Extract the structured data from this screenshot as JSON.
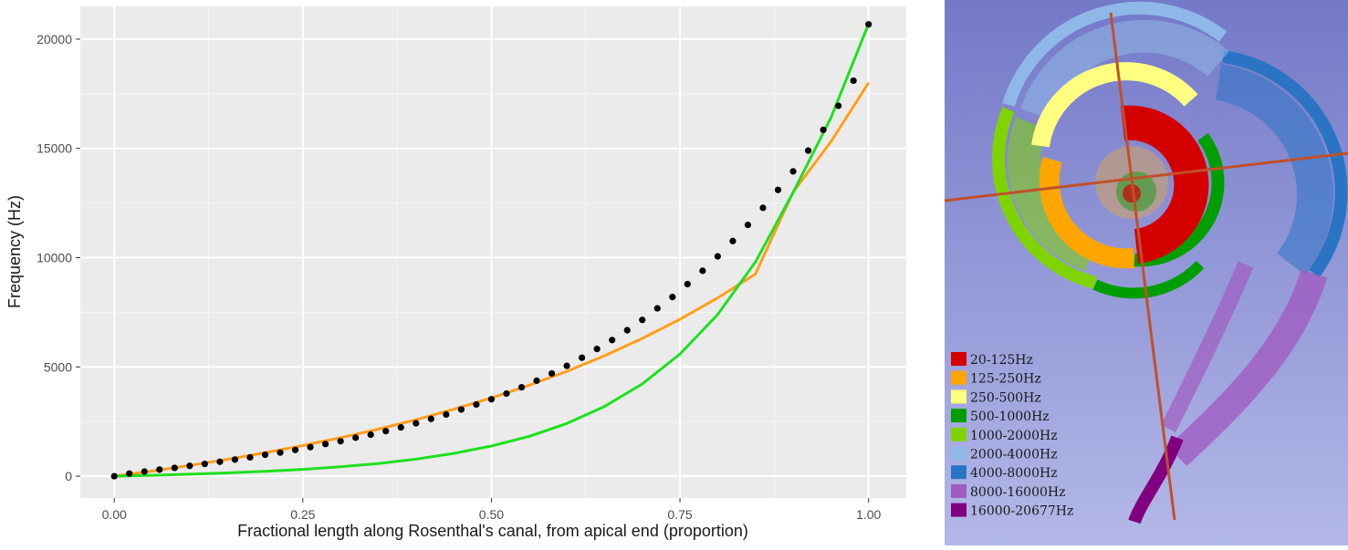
{
  "chart_data": {
    "type": "scatter",
    "title": "",
    "xlabel": "Fractional length along Rosenthal's canal, from apical end (proportion)",
    "ylabel": "Frequency (Hz)",
    "xlim": [
      -0.045,
      1.05
    ],
    "ylim": [
      -1000,
      21500
    ],
    "x_ticks": [
      {
        "value": 0,
        "label": "0.00"
      },
      {
        "value": 0.25,
        "label": "0.25"
      },
      {
        "value": 0.5,
        "label": "0.50"
      },
      {
        "value": 0.75,
        "label": "0.75"
      },
      {
        "value": 1,
        "label": "1.00"
      }
    ],
    "y_ticks": [
      {
        "value": 0,
        "label": "0"
      },
      {
        "value": 5000,
        "label": "5000"
      },
      {
        "value": 10000,
        "label": "10000"
      },
      {
        "value": 15000,
        "label": "15000"
      },
      {
        "value": 20000,
        "label": "20000"
      }
    ],
    "grid": true,
    "background": "#ebebeb",
    "series": [
      {
        "kind": "points",
        "color": "#000000",
        "points": [
          [
            0.0,
            0
          ],
          [
            0.02,
            120
          ],
          [
            0.04,
            210
          ],
          [
            0.06,
            300
          ],
          [
            0.08,
            380
          ],
          [
            0.1,
            470
          ],
          [
            0.12,
            560
          ],
          [
            0.14,
            660
          ],
          [
            0.16,
            760
          ],
          [
            0.18,
            860
          ],
          [
            0.2,
            980
          ],
          [
            0.22,
            1080
          ],
          [
            0.24,
            1200
          ],
          [
            0.26,
            1330
          ],
          [
            0.28,
            1470
          ],
          [
            0.3,
            1600
          ],
          [
            0.32,
            1760
          ],
          [
            0.34,
            1900
          ],
          [
            0.36,
            2060
          ],
          [
            0.38,
            2230
          ],
          [
            0.4,
            2420
          ],
          [
            0.42,
            2620
          ],
          [
            0.44,
            2820
          ],
          [
            0.46,
            3050
          ],
          [
            0.48,
            3280
          ],
          [
            0.5,
            3520
          ],
          [
            0.52,
            3780
          ],
          [
            0.54,
            4070
          ],
          [
            0.56,
            4370
          ],
          [
            0.58,
            4700
          ],
          [
            0.6,
            5050
          ],
          [
            0.62,
            5420
          ],
          [
            0.64,
            5820
          ],
          [
            0.66,
            6230
          ],
          [
            0.68,
            6680
          ],
          [
            0.7,
            7150
          ],
          [
            0.72,
            7680
          ],
          [
            0.74,
            8200
          ],
          [
            0.76,
            8790
          ],
          [
            0.78,
            9400
          ],
          [
            0.8,
            10060
          ],
          [
            0.82,
            10760
          ],
          [
            0.84,
            11500
          ],
          [
            0.86,
            12280
          ],
          [
            0.88,
            13100
          ],
          [
            0.9,
            13950
          ],
          [
            0.92,
            14900
          ],
          [
            0.94,
            15850
          ],
          [
            0.96,
            16950
          ],
          [
            0.98,
            18100
          ],
          [
            1.0,
            20677
          ]
        ]
      },
      {
        "kind": "line",
        "color": "#ff9e1b",
        "x": [
          0,
          0.05,
          0.1,
          0.15,
          0.2,
          0.25,
          0.3,
          0.35,
          0.4,
          0.45,
          0.5,
          0.55,
          0.6,
          0.65,
          0.7,
          0.75,
          0.8,
          0.85,
          0.9,
          0.95,
          1.0
        ],
        "y": [
          0,
          230,
          490,
          770,
          1070,
          1400,
          1760,
          2150,
          2580,
          3060,
          3580,
          4160,
          4800,
          5510,
          6300,
          7180,
          8160,
          9250,
          13000,
          15300,
          18000
        ]
      },
      {
        "kind": "line",
        "color": "#1fe01f",
        "x": [
          0,
          0.05,
          0.1,
          0.15,
          0.2,
          0.25,
          0.3,
          0.35,
          0.4,
          0.45,
          0.5,
          0.55,
          0.6,
          0.65,
          0.7,
          0.75,
          0.8,
          0.85,
          0.9,
          0.95,
          1.0
        ],
        "y": [
          0,
          40,
          90,
          150,
          220,
          310,
          430,
          580,
          780,
          1040,
          1380,
          1820,
          2410,
          3190,
          4220,
          5590,
          7400,
          9800,
          12980,
          16400,
          20700
        ]
      }
    ]
  },
  "cochlea": {
    "background": "#8f98d4",
    "legend": [
      {
        "label": "20-125Hz",
        "color": "#d40000"
      },
      {
        "label": "125-250Hz",
        "color": "#ffa500"
      },
      {
        "label": "250-500Hz",
        "color": "#ffff80"
      },
      {
        "label": "500-1000Hz",
        "color": "#009e00"
      },
      {
        "label": "1000-2000Hz",
        "color": "#7fd400"
      },
      {
        "label": "2000-4000Hz",
        "color": "#8fb8e8"
      },
      {
        "label": "4000-8000Hz",
        "color": "#2b74c4"
      },
      {
        "label": "8000-16000Hz",
        "color": "#a05cc0"
      },
      {
        "label": "16000-20677Hz",
        "color": "#800080"
      }
    ]
  }
}
